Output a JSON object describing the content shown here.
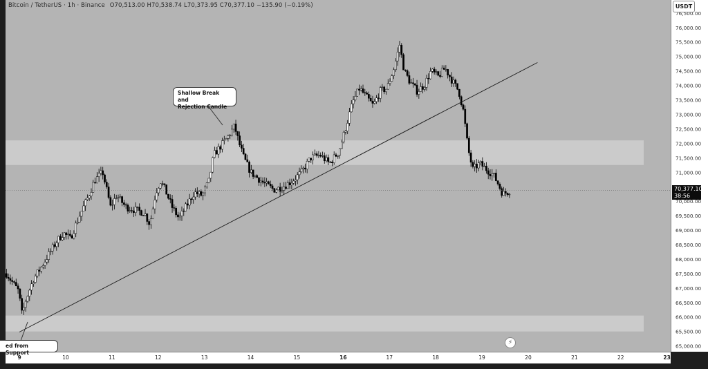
{
  "legend": {
    "symbol": "Bitcoin / TetherUS",
    "interval": "1h",
    "exchange": "Binance",
    "open_label": "O",
    "open": "70,513.00",
    "high_label": "H",
    "high": "70,538.74",
    "low_label": "L",
    "low": "70,373.95",
    "close_label": "C",
    "close": "70,377.10",
    "change": "−135.90 (−0.19%)"
  },
  "currency_button": "USDT",
  "price_tag": {
    "price": "70,377.10",
    "countdown": "38:56"
  },
  "annotations": {
    "rejection": [
      "Shallow Break and",
      "Rejection Candle"
    ],
    "support": "ed from Support"
  },
  "colors": {
    "background": "#b4b4b4",
    "zone": "#cbcbcb",
    "candle": "#000000",
    "axis_bg": "#ffffff"
  },
  "chart_data": {
    "type": "candlestick",
    "symbol": "Bitcoin / TetherUS",
    "interval": "1h",
    "exchange": "Binance",
    "y_ticks": [
      65000,
      65500,
      66000,
      66500,
      67000,
      67500,
      68000,
      68500,
      69000,
      69500,
      70000,
      70500,
      71000,
      71500,
      72000,
      72500,
      73000,
      73500,
      74000,
      74500,
      75000,
      75500,
      76000,
      76500
    ],
    "y_tick_labels": [
      "65,000.00",
      "65,500.00",
      "66,000.00",
      "66,500.00",
      "67,000.00",
      "67,500.00",
      "68,000.00",
      "68,500.00",
      "69,000.00",
      "69,500.00",
      "70,000.00",
      "70,500.00",
      "71,000.00",
      "71,500.00",
      "72,000.00",
      "72,500.00",
      "73,000.00",
      "73,500.00",
      "74,000.00",
      "74,500.00",
      "75,000.00",
      "75,500.00",
      "76,000.00",
      "76,500.00"
    ],
    "ylim": [
      64800,
      76950
    ],
    "x_day_labels": [
      "9",
      "10",
      "11",
      "12",
      "13",
      "14",
      "15",
      "16",
      "17",
      "18",
      "19",
      "20",
      "21",
      "22",
      "23"
    ],
    "bold_x_labels": [
      "9",
      "16",
      "23"
    ],
    "x_range_days": [
      8.7,
      23.08
    ],
    "zones": [
      {
        "from_price": 71250,
        "to_price": 72100
      },
      {
        "from_price": 65500,
        "to_price": 66050
      }
    ],
    "trendline": {
      "start": {
        "day": 9.0,
        "price": 65480
      },
      "end": {
        "day": 20.2,
        "price": 74790
      }
    },
    "close_price": 70377.1,
    "close_line_style": "dotted",
    "path_points": [
      [
        8.72,
        67500
      ],
      [
        8.85,
        67200
      ],
      [
        8.98,
        66900
      ],
      [
        9.06,
        66050
      ],
      [
        9.12,
        66500
      ],
      [
        9.3,
        67300
      ],
      [
        9.5,
        67800
      ],
      [
        9.65,
        68200
      ],
      [
        9.8,
        68600
      ],
      [
        9.95,
        68900
      ],
      [
        10.1,
        68700
      ],
      [
        10.3,
        69500
      ],
      [
        10.5,
        70200
      ],
      [
        10.62,
        70700
      ],
      [
        10.8,
        71000
      ],
      [
        10.9,
        70300
      ],
      [
        10.97,
        69800
      ],
      [
        11.1,
        70200
      ],
      [
        11.3,
        69800
      ],
      [
        11.5,
        69700
      ],
      [
        11.7,
        69600
      ],
      [
        11.82,
        69200
      ],
      [
        11.95,
        70300
      ],
      [
        12.05,
        70700
      ],
      [
        12.15,
        70400
      ],
      [
        12.3,
        69800
      ],
      [
        12.45,
        69400
      ],
      [
        12.6,
        69800
      ],
      [
        12.78,
        70300
      ],
      [
        12.95,
        70200
      ],
      [
        13.1,
        70700
      ],
      [
        13.2,
        71600
      ],
      [
        13.35,
        71900
      ],
      [
        13.5,
        72200
      ],
      [
        13.65,
        72600
      ],
      [
        13.75,
        72000
      ],
      [
        13.85,
        71500
      ],
      [
        14.0,
        71000
      ],
      [
        14.15,
        70800
      ],
      [
        14.3,
        70600
      ],
      [
        14.5,
        70400
      ],
      [
        14.7,
        70500
      ],
      [
        14.9,
        70700
      ],
      [
        15.1,
        71000
      ],
      [
        15.3,
        71500
      ],
      [
        15.5,
        71600
      ],
      [
        15.7,
        71300
      ],
      [
        15.9,
        71700
      ],
      [
        16.05,
        72500
      ],
      [
        16.2,
        73400
      ],
      [
        16.35,
        73900
      ],
      [
        16.5,
        73600
      ],
      [
        16.65,
        73300
      ],
      [
        16.8,
        73800
      ],
      [
        16.95,
        73900
      ],
      [
        17.1,
        74600
      ],
      [
        17.22,
        75400
      ],
      [
        17.32,
        74500
      ],
      [
        17.45,
        74100
      ],
      [
        17.6,
        73800
      ],
      [
        17.75,
        74000
      ],
      [
        17.9,
        74500
      ],
      [
        18.05,
        74300
      ],
      [
        18.2,
        74600
      ],
      [
        18.38,
        74100
      ],
      [
        18.5,
        73800
      ],
      [
        18.6,
        73100
      ],
      [
        18.7,
        71800
      ],
      [
        18.8,
        71100
      ],
      [
        18.95,
        71300
      ],
      [
        19.1,
        71100
      ],
      [
        19.25,
        70900
      ],
      [
        19.35,
        70600
      ],
      [
        19.45,
        70250
      ],
      [
        19.55,
        70320
      ],
      [
        19.62,
        70377.1
      ]
    ]
  }
}
